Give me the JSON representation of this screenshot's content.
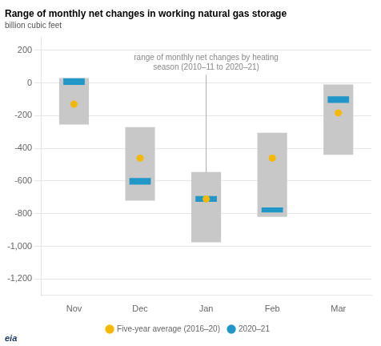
{
  "chart_data": {
    "type": "bar",
    "title": "Range of monthly net changes in working natural gas storage",
    "subtitle": "billion cubic feet",
    "categories": [
      "Nov",
      "Dec",
      "Jan",
      "Feb",
      "Mar"
    ],
    "series": [
      {
        "color": "#c8c8c8",
        "values": [
          [
            30,
            -255
          ],
          [
            -270,
            -720
          ],
          [
            -545,
            -975
          ],
          [
            -305,
            -820
          ],
          [
            -10,
            -440
          ]
        ]
      },
      {
        "name": "2020–21",
        "color": "#2196c8",
        "marker": "circle",
        "values": [
          [
            28,
            -12
          ],
          [
            -582,
            -622
          ],
          [
            -692,
            -728
          ],
          [
            -762,
            -792
          ],
          [
            -82,
            -122
          ]
        ]
      },
      {
        "name": "Five-year average (2016–20)",
        "type": "line",
        "color": "#f5b800",
        "marker": "circle",
        "line_style": "none",
        "values": [
          -130,
          -460,
          -710,
          -460,
          -183
        ]
      }
    ],
    "ylim": [
      -1300,
      280
    ],
    "yticks": [
      200,
      0,
      -200,
      -400,
      -600,
      -800,
      {
        "value": -1000,
        "label": "-1,000"
      },
      {
        "value": -1200,
        "label": "-1,200"
      }
    ],
    "grid": true,
    "legend": "bottom",
    "annotations": [
      {
        "text": "range of monthly net changes by heating\nseason (2010–11 to 2020–21)",
        "x": "Jan",
        "y": -548
      },
      {
        "text": "eia"
      }
    ]
  }
}
